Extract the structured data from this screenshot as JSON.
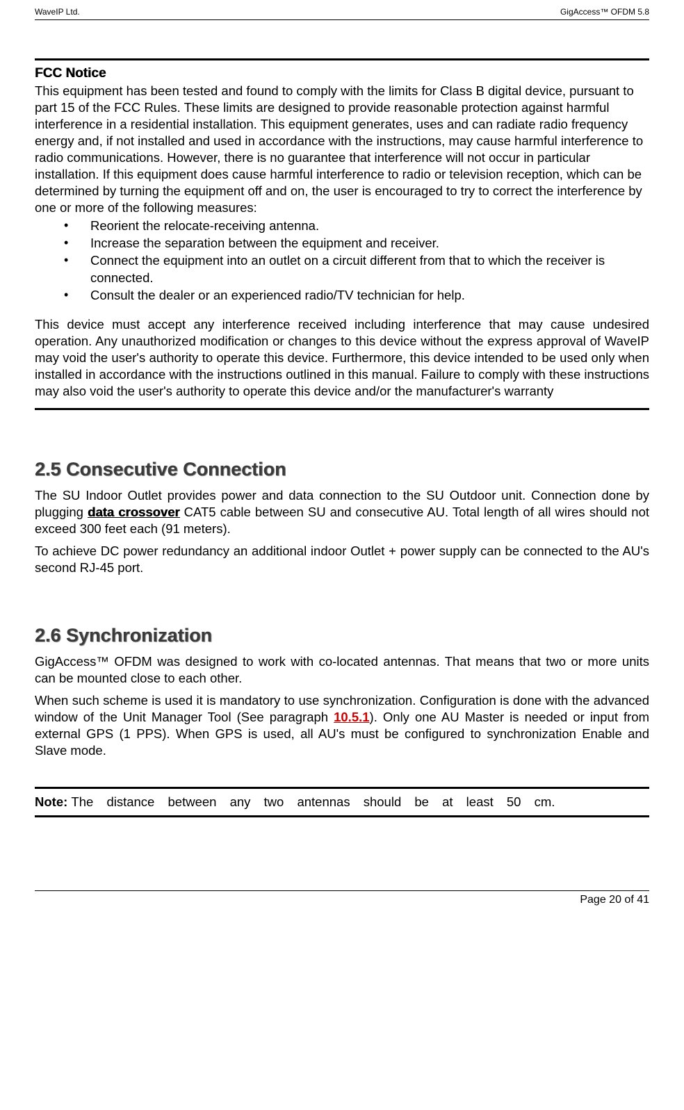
{
  "header": {
    "left": "WaveIP Ltd.",
    "right": "GigAccess™ OFDM 5.8"
  },
  "fcc": {
    "heading": "FCC Notice",
    "intro": "This equipment has been tested and found to comply with the limits for Class B digital device, pursuant to part 15 of the FCC Rules. These limits are designed to provide reasonable protection against harmful interference in a residential installation. This equipment generates, uses and can radiate radio frequency energy and, if not installed and used in accordance with the instructions, may cause harmful interference to radio communications. However, there is no guarantee that interference will not occur in particular installation. If this equipment does cause harmful interference to radio or television reception, which can be determined by turning the equipment off and on, the user is encouraged to try to correct the interference by one or more of the following measures:",
    "bullets": [
      "Reorient the relocate-receiving antenna.",
      "Increase the separation between the equipment and receiver.",
      "Connect the equipment into an outlet on a circuit different from that to which the receiver is connected.",
      "Consult the dealer or an experienced radio/TV technician for help."
    ],
    "closing": "This device must accept any interference received including interference that may cause undesired operation. Any unauthorized modification or changes to this device without the express approval of WaveIP may void the user's authority to operate this device. Furthermore, this device intended to be used only when installed in accordance with the instructions outlined in this manual. Failure to comply with these instructions may also void the user's authority to operate this device and/or the manufacturer's warranty"
  },
  "section25": {
    "heading": "2.5 Consecutive Connection",
    "para1_a": "The SU Indoor Outlet provides power and data connection to the SU Outdoor unit. Connection done by plugging ",
    "para1_bold": "data crossover",
    "para1_b": " CAT5 cable between SU and consecutive AU. Total length of all wires should not exceed 300 feet each (91 meters).",
    "para2": "To achieve DC power redundancy an additional indoor Outlet + power supply can be connected to the AU's second RJ-45 port."
  },
  "section26": {
    "heading": "2.6 Synchronization",
    "para1": "GigAccess™ OFDM was designed to work with co-located antennas. That means that two or more units can be mounted close to each other.",
    "para2_a": "When such scheme is used it is mandatory to use synchronization. Configuration is done with the advanced window of the Unit Manager Tool (See paragraph ",
    "para2_link": "10.5.1",
    "para2_b": "). Only one AU Master is needed or input from external GPS (1 PPS). When GPS is used, all AU's must be configured to synchronization Enable and Slave mode."
  },
  "note": {
    "label": "Note: ",
    "text": "The distance between any two antennas should be at least 50 cm."
  },
  "footer": {
    "text": "Page 20 of 41"
  }
}
